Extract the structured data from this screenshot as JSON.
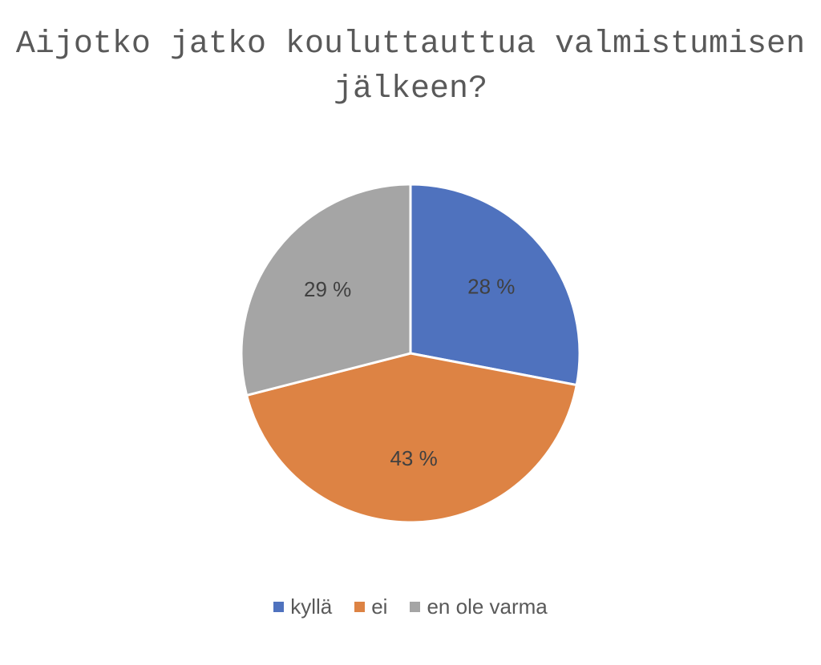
{
  "chart_data": {
    "type": "pie",
    "title_lines": [
      "Aijotko jatko koulut­tauttua valmistumisen",
      "jälkeen?"
    ],
    "categories": [
      "kyllä",
      "ei",
      "en ole varma"
    ],
    "values": [
      28,
      43,
      29
    ],
    "labels": [
      "28 %",
      "43 %",
      "29 %"
    ],
    "colors": [
      "#4F72BE",
      "#DD8344",
      "#A5A5A5"
    ],
    "start_angle_deg": 0,
    "direction": "clockwise",
    "legend_position": "bottom"
  }
}
